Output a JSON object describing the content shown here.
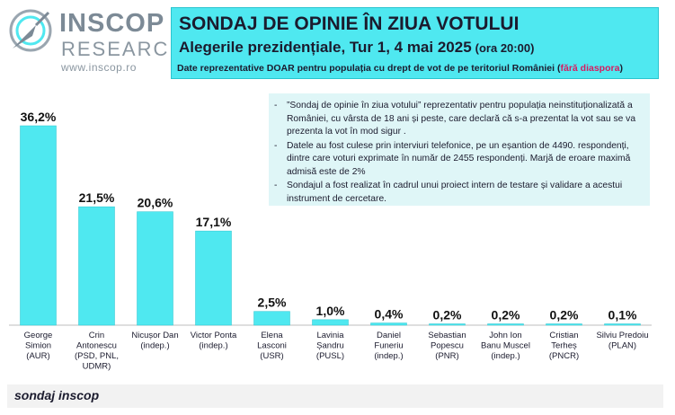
{
  "logo": {
    "brand_line1": "INSCOP",
    "brand_line2": "RESEARCH",
    "website": "www.inscop.ro"
  },
  "header": {
    "title": "SONDAJ DE OPINIE ÎN ZIUA VOTULUI",
    "subtitle": "Alegerile prezidențiale, Tur 1, 4 mai 2025",
    "time": "(ora 20:00)",
    "note_prefix": "Date reprezentative DOAR pentru populația cu drept de vot de pe teritoriul României (",
    "note_highlight": "fără diaspora",
    "note_suffix": ")"
  },
  "notes": [
    "”Sondaj de opinie în ziua votului” reprezentativ pentru populația neinstituționalizată a României, cu vârsta de 18 ani și peste, care declară că s-a prezentat la vot sau se va prezenta la vot în mod sigur .",
    "Datele au fost culese prin interviuri telefonice, pe un eșantion de 4490. respondenți, dintre care voturi exprimate în număr de 2455 respondenți. Marjă de eroare maximă admisă este de 2%",
    "Sondajul a fost realizat în cadrul unui proiect intern de testare și validare a acestui instrument de cercetare."
  ],
  "footer": {
    "source": "sondaj inscop"
  },
  "colors": {
    "bar": "#4fe8f0",
    "bar_edge": "#2ac5cf",
    "header_bg": "#4fe8f0",
    "highlight": "#d81b60",
    "text": "#1b1b2e"
  },
  "chart_data": {
    "type": "bar",
    "categories": [
      "George Simion (AUR)",
      "Crin Antonescu (PSD, PNL, UDMR)",
      "Nicușor Dan (indep.)",
      "Victor Ponta (indep.)",
      "Elena Lasconi (USR)",
      "Lavinia Șandru (PUSL)",
      "Daniel Funeriu (indep.)",
      "Sebastian Popescu (PNR)",
      "John Ion Banu Muscel (indep.)",
      "Cristian Terheș (PNCR)",
      "Silviu Predoiu (PLAN)"
    ],
    "category_lines": [
      [
        "George",
        "Simion",
        "(AUR)"
      ],
      [
        "Crin",
        "Antonescu",
        "(PSD, PNL,",
        "UDMR)"
      ],
      [
        "Nicușor Dan",
        "(indep.)"
      ],
      [
        "Victor Ponta",
        "(indep.)"
      ],
      [
        "Elena",
        "Lasconi",
        "(USR)"
      ],
      [
        "Lavinia",
        "Șandru",
        "(PUSL)"
      ],
      [
        "Daniel",
        "Funeriu",
        "(indep.)"
      ],
      [
        "Sebastian",
        "Popescu",
        "(PNR)"
      ],
      [
        "John Ion",
        "Banu Muscel",
        "(indep.)"
      ],
      [
        "Cristian",
        "Terheș",
        "(PNCR)"
      ],
      [
        "Silviu Predoiu",
        "(PLAN)"
      ]
    ],
    "values": [
      36.2,
      21.5,
      20.6,
      17.1,
      2.5,
      1.0,
      0.4,
      0.2,
      0.2,
      0.2,
      0.1
    ],
    "value_labels": [
      "36,2%",
      "21,5%",
      "20,6%",
      "17,1%",
      "2,5%",
      "1,0%",
      "0,4%",
      "0,2%",
      "0,2%",
      "0,2%",
      "0,1%"
    ],
    "ylim": [
      0,
      36.2
    ],
    "grid": false
  }
}
